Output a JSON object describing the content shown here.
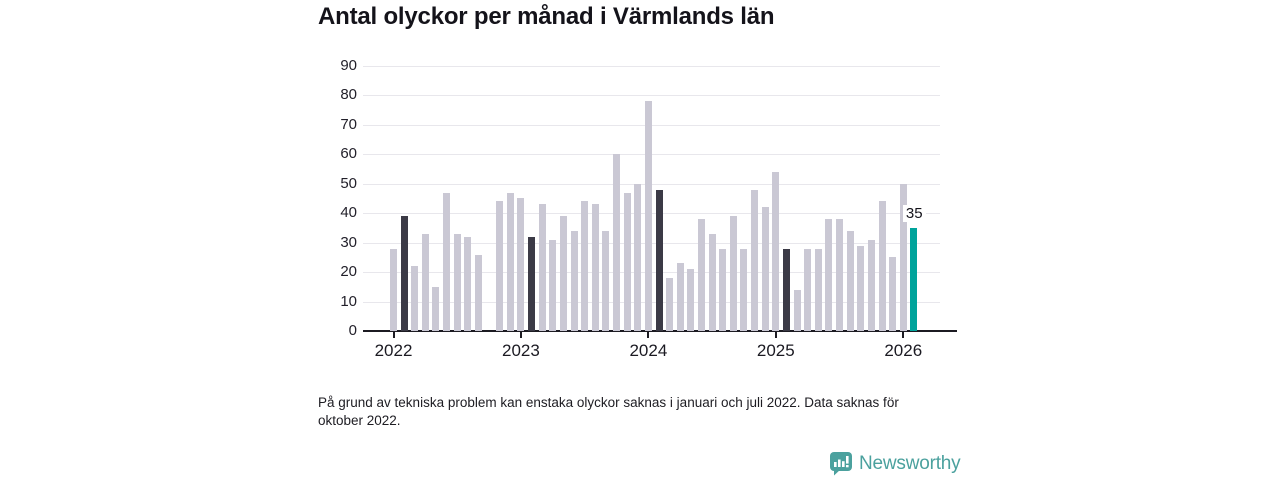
{
  "title": "Antal olyckor per månad i Värmlands län",
  "annotation": {
    "label": "35"
  },
  "footnote": {
    "line1": "På grund av tekniska problem kan enstaka olyckor saknas i januari och juli 2022. Data saknas för",
    "line2": "oktober 2022."
  },
  "logo": {
    "text": "Newsworthy"
  },
  "colors": {
    "bar_default": "#cac8d4",
    "bar_highlight": "#3b3a46",
    "bar_current": "#00a39b",
    "gridline": "#e8e7ec",
    "axis": "#1c1b22",
    "title_text": "#14131a",
    "tick_text": "#1b1a22",
    "logo_teal": "#4ba19e"
  },
  "chart_data": {
    "type": "bar",
    "title": "Antal olyckor per månad i Värmlands län",
    "x": [
      "2022-01",
      "2022-02",
      "2022-03",
      "2022-04",
      "2022-05",
      "2022-06",
      "2022-07",
      "2022-08",
      "2022-09",
      "2022-10",
      "2022-11",
      "2022-12",
      "2023-01",
      "2023-02",
      "2023-03",
      "2023-04",
      "2023-05",
      "2023-06",
      "2023-07",
      "2023-08",
      "2023-09",
      "2023-10",
      "2023-11",
      "2023-12",
      "2024-01",
      "2024-02",
      "2024-03",
      "2024-04",
      "2024-05",
      "2024-06",
      "2024-07",
      "2024-08",
      "2024-09",
      "2024-10",
      "2024-11",
      "2024-12",
      "2025-01",
      "2025-02",
      "2025-03",
      "2025-04",
      "2025-05",
      "2025-06",
      "2025-07",
      "2025-08",
      "2025-09",
      "2025-10",
      "2025-11",
      "2025-12",
      "2026-01",
      "2026-02"
    ],
    "values": [
      28,
      39,
      22,
      33,
      15,
      47,
      33,
      32,
      26,
      null,
      44,
      47,
      45,
      32,
      43,
      31,
      39,
      34,
      44,
      43,
      34,
      60,
      47,
      50,
      78,
      48,
      18,
      23,
      21,
      38,
      33,
      28,
      39,
      28,
      48,
      42,
      54,
      28,
      14,
      28,
      28,
      38,
      38,
      34,
      29,
      31,
      44,
      25,
      50,
      35
    ],
    "highlighted_months": [
      "2022-02",
      "2023-02",
      "2024-02",
      "2025-02"
    ],
    "current_month": "2026-02",
    "current_month_value": 35,
    "missing_months": [
      "2022-10"
    ],
    "yticks": [
      0,
      10,
      20,
      30,
      40,
      50,
      60,
      70,
      80,
      90
    ],
    "ylim": [
      0,
      90
    ],
    "xtick_labels": [
      "2022",
      "2023",
      "2024",
      "2025",
      "2026"
    ],
    "grid": "horizontal-only",
    "legend": "none"
  }
}
